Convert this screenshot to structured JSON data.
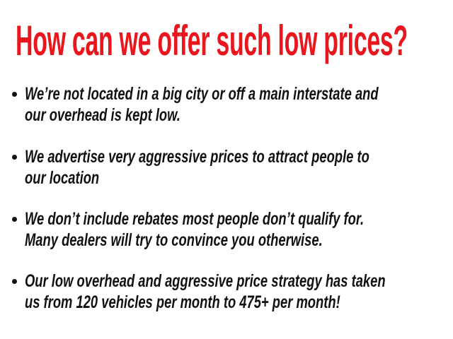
{
  "slide": {
    "title": "How can we offer such low prices?",
    "title_color": "#e8171d",
    "bullets": [
      {
        "lines": [
          "We’re not located in a big city or off a main interstate and",
          "our overhead is kept low."
        ]
      },
      {
        "lines": [
          "We advertise very aggressive prices to attract people to",
          "our location"
        ]
      },
      {
        "lines": [
          "We don’t include rebates most people don’t qualify for.",
          "Many dealers will try to convince you otherwise."
        ]
      },
      {
        "lines": [
          "Our low overhead and aggressive price strategy has taken",
          "us from 120 vehicles per month to 475+ per month!"
        ]
      }
    ]
  }
}
